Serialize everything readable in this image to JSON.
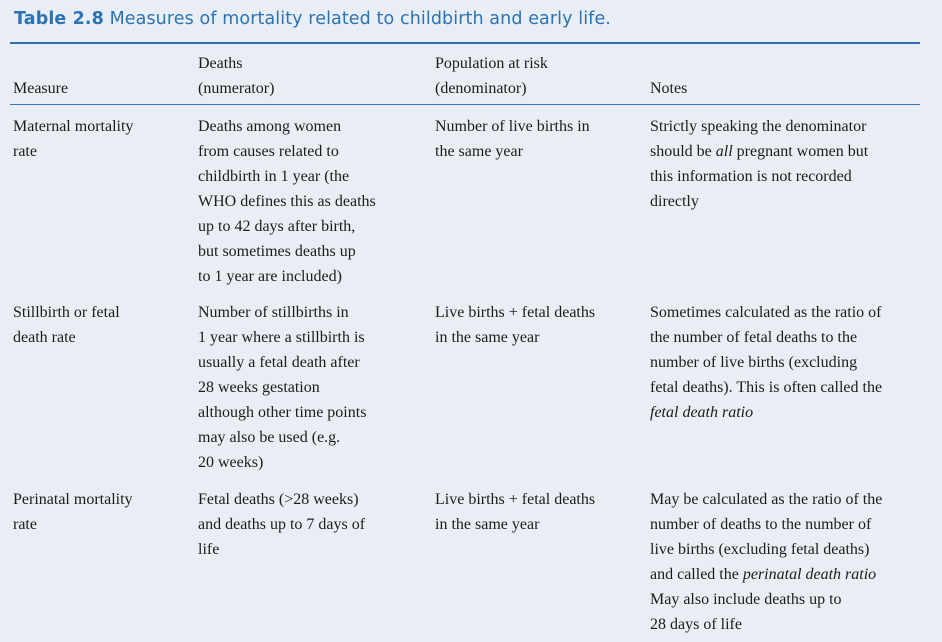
{
  "caption": {
    "label": "Table 2.8",
    "title": "Measures of mortality related to childbirth and early life."
  },
  "headers": [
    {
      "lines": [
        "Measure"
      ]
    },
    {
      "lines": [
        "Deaths",
        "(numerator)"
      ]
    },
    {
      "lines": [
        "Population at risk",
        "(denominator)"
      ]
    },
    {
      "lines": [
        "Notes"
      ]
    }
  ],
  "rows": [
    {
      "measure": [
        "Maternal mortality",
        "rate"
      ],
      "numerator": [
        "Deaths among women",
        "from causes related to",
        "childbirth in 1 year (the",
        "WHO defines this as deaths",
        "up to 42 days after birth,",
        "but sometimes deaths up",
        "to 1 year are included)"
      ],
      "denominator": [
        "Number of live births in",
        "the same year"
      ],
      "notes": [
        [
          {
            "t": "Strictly speaking the denominator"
          }
        ],
        [
          {
            "t": "should be "
          },
          {
            "t": "all",
            "em": true
          },
          {
            "t": " pregnant women but"
          }
        ],
        [
          {
            "t": "this information is not recorded"
          }
        ],
        [
          {
            "t": "directly"
          }
        ]
      ]
    },
    {
      "measure": [
        "Stillbirth or fetal",
        "death rate"
      ],
      "numerator": [
        "Number of stillbirths in",
        "1 year where a stillbirth is",
        "usually a fetal death after",
        "28 weeks gestation",
        "although other time points",
        "may also be used (e.g.",
        "20 weeks)"
      ],
      "denominator": [
        "Live births + fetal deaths",
        "in the same year"
      ],
      "notes": [
        [
          {
            "t": "Sometimes calculated as the ratio of"
          }
        ],
        [
          {
            "t": "the number of fetal deaths to the"
          }
        ],
        [
          {
            "t": "number of live births (excluding"
          }
        ],
        [
          {
            "t": "fetal deaths). This is often called the"
          }
        ],
        [
          {
            "t": "fetal death ratio",
            "em": true
          }
        ]
      ]
    },
    {
      "measure": [
        "Perinatal mortality",
        "rate"
      ],
      "numerator": [
        "Fetal deaths (>28 weeks)",
        "and deaths up to 7 days of",
        "life"
      ],
      "denominator": [
        "Live births + fetal deaths",
        "in the same year"
      ],
      "notes": [
        [
          {
            "t": "May be calculated as the ratio of the"
          }
        ],
        [
          {
            "t": "number of deaths to the number of"
          }
        ],
        [
          {
            "t": "live births (excluding fetal deaths)"
          }
        ],
        [
          {
            "t": "and called the "
          },
          {
            "t": "perinatal death ratio",
            "em": true
          }
        ],
        [
          {
            "t": "May also include deaths up to"
          }
        ],
        [
          {
            "t": "28 days of life"
          }
        ]
      ]
    }
  ]
}
